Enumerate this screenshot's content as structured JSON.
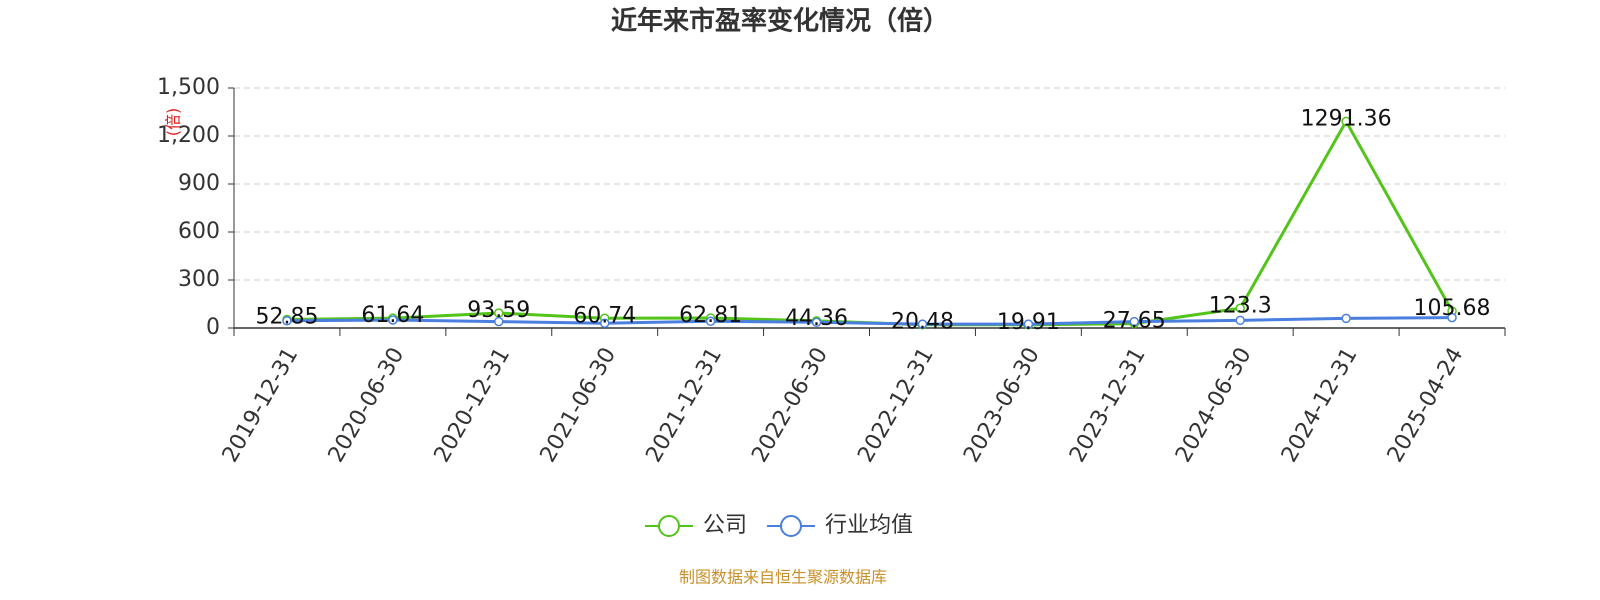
{
  "chart_data": {
    "type": "line",
    "title": "近年来市盈率变化情况（倍）",
    "y_label": "(倍)",
    "source": "制图数据来自恒生聚源数据库",
    "categories": [
      "2019-12-31",
      "2020-06-30",
      "2020-12-31",
      "2021-06-30",
      "2021-12-31",
      "2022-06-30",
      "2022-12-31",
      "2023-06-30",
      "2023-12-31",
      "2024-06-30",
      "2024-12-31",
      "2025-04-24"
    ],
    "series": [
      {
        "name": "公司",
        "color": "#52c41a",
        "values": [
          52.85,
          61.64,
          93.59,
          60.74,
          62.81,
          44.36,
          20.48,
          19.91,
          27.65,
          123.3,
          1291.36,
          105.68
        ],
        "show_labels": true
      },
      {
        "name": "行业均值",
        "color": "#4a7fe0",
        "values": [
          45,
          50,
          40,
          30,
          42,
          36,
          24,
          24,
          40,
          48,
          60,
          65
        ],
        "show_labels": false
      }
    ],
    "ylim": [
      0,
      1500
    ],
    "yticks": [
      0,
      300,
      600,
      900,
      {
        "value": 1200,
        "label": "1,200"
      },
      {
        "value": 1500,
        "label": "1,500"
      }
    ],
    "grid": true,
    "legend": "bottom"
  }
}
